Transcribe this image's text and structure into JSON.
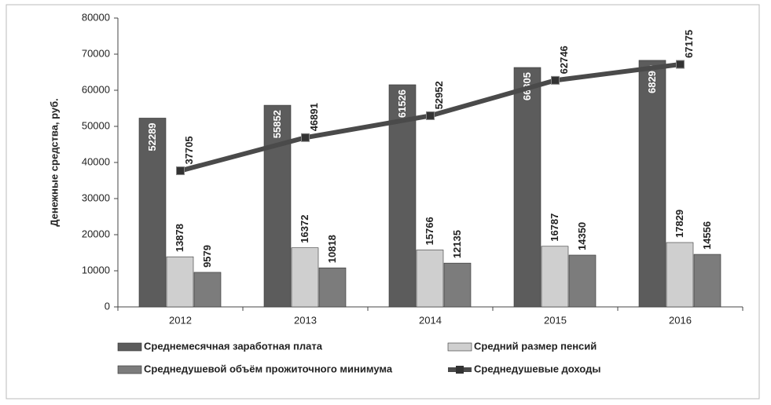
{
  "chart_data": {
    "type": "bar",
    "categories": [
      "2012",
      "2013",
      "2014",
      "2015",
      "2016"
    ],
    "y_label": "Денежные средства, руб.",
    "series": [
      {
        "name": "Среднемесячная заработная плата",
        "color": "#5c5c5c",
        "type": "bar",
        "values": [
          52289,
          55852,
          61526,
          66305,
          68290
        ]
      },
      {
        "name": "Средний размер пенсий",
        "color": "#cfcfcf",
        "type": "bar",
        "values": [
          13878,
          16372,
          15766,
          16787,
          17829
        ]
      },
      {
        "name": "Среднедушевой объём прожиточного  минимума",
        "color": "#7c7c7c",
        "type": "bar",
        "values": [
          9579,
          10818,
          12135,
          14350,
          14556
        ]
      },
      {
        "name": "Среднедушевые доходы",
        "color": "#4a4a4a",
        "type": "line",
        "values": [
          37705,
          46891,
          52952,
          62746,
          67175
        ]
      }
    ],
    "ylim": [
      0,
      80000
    ],
    "yticks": [
      0,
      10000,
      20000,
      30000,
      40000,
      50000,
      60000,
      70000,
      80000
    ],
    "legend": "bottom"
  }
}
